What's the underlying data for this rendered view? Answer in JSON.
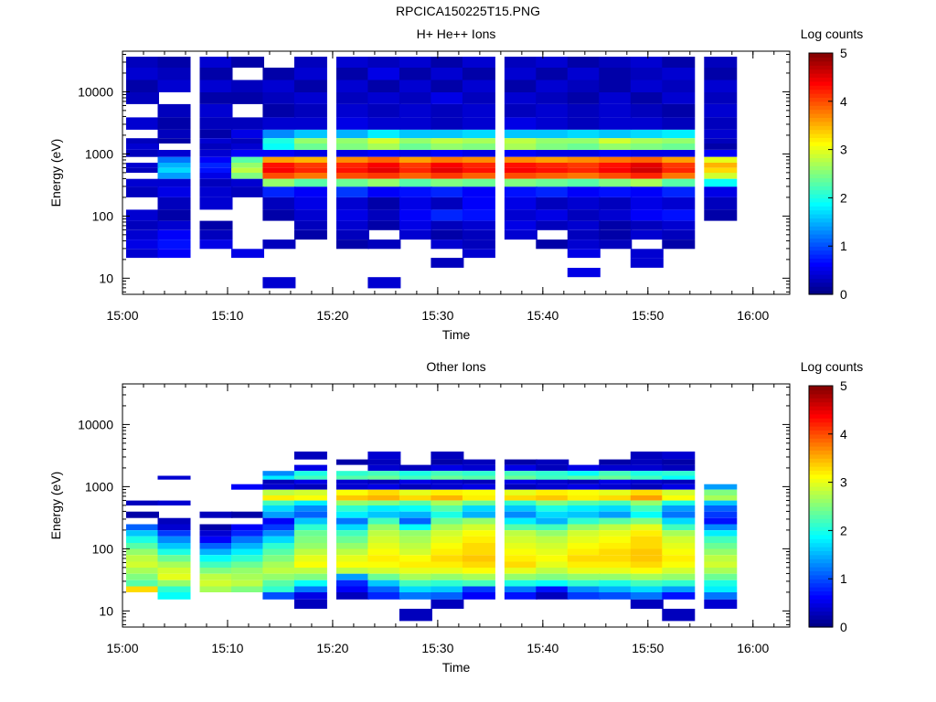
{
  "figure": {
    "title": "RPCICA150225T15.PNG"
  },
  "colorbar": {
    "label": "Log counts",
    "ticks": [
      "0",
      "1",
      "2",
      "3",
      "4",
      "5"
    ]
  },
  "chart_data": [
    {
      "type": "heatmap",
      "title": "H+ He++ Ions",
      "xlabel": "Time",
      "ylabel": "Energy (eV)",
      "x_ticks": [
        "15:00",
        "15:10",
        "15:20",
        "15:30",
        "15:40",
        "15:50",
        "16:00"
      ],
      "y_ticks": [
        "10",
        "100",
        "1000",
        "10000"
      ],
      "x_range": [
        "15:00",
        "16:00"
      ],
      "y_range": [
        5.5,
        45000
      ],
      "y_scale": "log",
      "colorbar_label": "Log counts",
      "colorbar_range": [
        0,
        5
      ],
      "x_bins": [
        "15:02",
        "15:05",
        "15:09",
        "15:12",
        "15:15",
        "15:18",
        "15:22",
        "15:25",
        "15:28",
        "15:31",
        "15:34",
        "15:38",
        "15:41",
        "15:44",
        "15:47",
        "15:50",
        "15:53",
        "15:57"
      ],
      "energy_rows": [
        30000,
        20000,
        12000,
        8000,
        5000,
        3000,
        2000,
        1600,
        1350,
        1000,
        800,
        650,
        550,
        450,
        350,
        250,
        160,
        100,
        70,
        50,
        35,
        25,
        18,
        12,
        9
      ],
      "values": [
        [
          0.3,
          0.2,
          0.4,
          0.2,
          0,
          0.3,
          0.4,
          0.3,
          0.4,
          0.2,
          0.4,
          0.3,
          0.4,
          0.2,
          0.3,
          0.4,
          0.2,
          0.3
        ],
        [
          0.4,
          0.3,
          0.2,
          0,
          0.2,
          0.4,
          0.2,
          0.5,
          0.2,
          0.4,
          0.2,
          0.4,
          0.2,
          0.4,
          0.2,
          0.3,
          0.4,
          0.2
        ],
        [
          0.2,
          0.4,
          0.4,
          0.3,
          0.4,
          0.2,
          0.4,
          0.2,
          0.4,
          0.2,
          0.4,
          0.2,
          0.4,
          0.3,
          0.2,
          0.4,
          0.3,
          0.4
        ],
        [
          0.3,
          0,
          0.2,
          0.2,
          0.3,
          0.4,
          0.3,
          0.4,
          0.3,
          0.5,
          0.3,
          0.4,
          0.3,
          0.2,
          0.4,
          0.2,
          0.4,
          0.3
        ],
        [
          0,
          0.3,
          0.4,
          0,
          0.2,
          0.3,
          0.4,
          0.3,
          0.4,
          0.3,
          0.4,
          0.3,
          0.4,
          0.3,
          0.4,
          0.3,
          0.2,
          0.4
        ],
        [
          0.4,
          0.2,
          0.3,
          0.3,
          0.4,
          0.4,
          0.5,
          0.4,
          0.4,
          0.3,
          0.4,
          0.5,
          0.4,
          0.3,
          0.4,
          0.4,
          0.3,
          0.3
        ],
        [
          0,
          0.3,
          0.2,
          0.5,
          1.3,
          1.6,
          1.5,
          1.8,
          1.6,
          1.6,
          1.7,
          1.6,
          1.6,
          1.7,
          1.6,
          1.7,
          1.8,
          0.4
        ],
        [
          0.3,
          0.2,
          0.4,
          0.3,
          2.0,
          2.6,
          2.6,
          2.9,
          2.6,
          2.8,
          2.7,
          2.8,
          2.6,
          2.6,
          2.9,
          2.7,
          2.6,
          0.3
        ],
        [
          0.4,
          0,
          0.3,
          0.4,
          1.9,
          2.4,
          2.5,
          2.7,
          2.4,
          2.6,
          2.5,
          2.7,
          2.5,
          2.4,
          2.6,
          2.5,
          2.4,
          0.2
        ],
        [
          0.3,
          0.4,
          0.4,
          0.6,
          0.6,
          0.5,
          0.5,
          0.6,
          0.5,
          0.6,
          0.5,
          0.6,
          0.5,
          0.5,
          0.6,
          0.5,
          0.5,
          0.6
        ],
        [
          0,
          1.2,
          0.6,
          2.3,
          3.6,
          3.5,
          3.7,
          3.9,
          3.6,
          3.8,
          3.7,
          3.7,
          3.6,
          3.7,
          3.8,
          3.9,
          3.6,
          3.0
        ],
        [
          0.4,
          1.5,
          0.8,
          2.6,
          4.3,
          4.1,
          4.2,
          4.4,
          4.1,
          4.4,
          4.2,
          4.3,
          4.2,
          4.1,
          4.3,
          4.5,
          4.1,
          3.5
        ],
        [
          0.3,
          1.7,
          0.7,
          2.8,
          4.4,
          4.2,
          4.3,
          4.5,
          4.2,
          4.5,
          4.3,
          4.4,
          4.3,
          4.2,
          4.4,
          4.6,
          4.2,
          3.3
        ],
        [
          0,
          1.4,
          0.5,
          2.5,
          4.0,
          3.8,
          4.0,
          4.1,
          3.9,
          4.1,
          3.9,
          4.0,
          3.9,
          3.8,
          4.0,
          4.2,
          3.8,
          2.9
        ],
        [
          0.4,
          0.4,
          0.3,
          0.4,
          2.6,
          2.3,
          2.4,
          2.6,
          2.3,
          2.5,
          2.4,
          2.5,
          2.4,
          2.3,
          2.5,
          2.7,
          2.3,
          1.9
        ],
        [
          0.3,
          0.5,
          0.4,
          0.3,
          0.8,
          0.6,
          0.9,
          0.6,
          0.7,
          0.8,
          0.6,
          0.7,
          0.8,
          0.6,
          0.7,
          0.6,
          0.8,
          0.5
        ],
        [
          0,
          0.3,
          0.4,
          0,
          0.3,
          0.5,
          0.4,
          0.2,
          0.5,
          0.3,
          0.6,
          0.5,
          0.3,
          0.4,
          0.3,
          0.5,
          0.4,
          0.3
        ],
        [
          0.4,
          0.2,
          0,
          0,
          0.2,
          0.4,
          0.5,
          0.3,
          0.6,
          0.8,
          0.7,
          0.4,
          0.5,
          0.3,
          0.4,
          0.6,
          0.7,
          0.2
        ],
        [
          0.3,
          0.4,
          0.2,
          0,
          0,
          0.3,
          0.4,
          0.2,
          0.5,
          0.3,
          0.4,
          0.5,
          0.3,
          0.4,
          0.2,
          0.3,
          0.4,
          0
        ],
        [
          0.4,
          0.6,
          0.3,
          0,
          0,
          0.2,
          0.3,
          0,
          0.4,
          0.2,
          0.3,
          0.4,
          0,
          0.3,
          0.2,
          0.4,
          0.3,
          0
        ],
        [
          0.5,
          0.7,
          0.5,
          0,
          0.3,
          0,
          0.2,
          0.3,
          0,
          0.4,
          0.3,
          0,
          0.2,
          0.4,
          0.3,
          0,
          0.2,
          0
        ],
        [
          0.4,
          0.6,
          0,
          0.5,
          0,
          0,
          0,
          0,
          0,
          0,
          0.4,
          0,
          0,
          0.5,
          0,
          0.4,
          0,
          0
        ],
        [
          0,
          0,
          0,
          0,
          0,
          0,
          0,
          0,
          0,
          0.3,
          0,
          0,
          0,
          0,
          0,
          0.4,
          0,
          0
        ],
        [
          0,
          0,
          0,
          0,
          0,
          0,
          0,
          0,
          0,
          0,
          0,
          0,
          0,
          0.5,
          0,
          0,
          0,
          0
        ],
        [
          0,
          0,
          0,
          0,
          0.4,
          0,
          0,
          0.4,
          0,
          0,
          0,
          0,
          0,
          0,
          0,
          0,
          0,
          0
        ]
      ]
    },
    {
      "type": "heatmap",
      "title": "Other Ions",
      "xlabel": "Time",
      "ylabel": "Energy (eV)",
      "x_ticks": [
        "15:00",
        "15:10",
        "15:20",
        "15:30",
        "15:40",
        "15:50",
        "16:00"
      ],
      "y_ticks": [
        "10",
        "100",
        "1000",
        "10000"
      ],
      "x_range": [
        "15:00",
        "16:00"
      ],
      "y_range": [
        5.5,
        45000
      ],
      "y_scale": "log",
      "colorbar_label": "Log counts",
      "colorbar_range": [
        0,
        5
      ],
      "x_bins": [
        "15:02",
        "15:05",
        "15:09",
        "15:12",
        "15:15",
        "15:18",
        "15:22",
        "15:25",
        "15:28",
        "15:31",
        "15:34",
        "15:38",
        "15:41",
        "15:44",
        "15:47",
        "15:50",
        "15:53",
        "15:57"
      ],
      "energy_rows": [
        3000,
        2500,
        2000,
        1600,
        1400,
        1200,
        1000,
        800,
        650,
        550,
        450,
        350,
        280,
        220,
        180,
        140,
        110,
        90,
        70,
        55,
        45,
        35,
        28,
        22,
        18,
        13,
        9
      ],
      "values": [
        [
          0,
          0,
          0,
          0,
          0,
          0.3,
          0,
          0.4,
          0,
          0.3,
          0,
          0,
          0,
          0,
          0,
          0.3,
          0.4,
          0
        ],
        [
          0,
          0,
          0,
          0,
          0,
          0,
          0.2,
          0.3,
          0,
          0.2,
          0.3,
          0.2,
          0.3,
          0,
          0.2,
          0.3,
          0.2,
          0
        ],
        [
          0,
          0,
          0,
          0,
          0,
          0.5,
          0,
          0.4,
          0.3,
          0.5,
          0.4,
          0.5,
          0.3,
          0.5,
          0.4,
          0.4,
          0.3,
          0
        ],
        [
          0,
          0,
          0,
          0,
          1.3,
          2.0,
          2.1,
          2.2,
          2.0,
          2.2,
          2.1,
          2.2,
          2.1,
          1.9,
          2.2,
          2.0,
          2.1,
          0
        ],
        [
          0,
          0.4,
          0,
          0,
          1.8,
          2.2,
          2.3,
          2.4,
          2.2,
          2.4,
          2.3,
          2.4,
          2.2,
          2.3,
          2.4,
          2.2,
          1.9,
          0
        ],
        [
          0,
          0,
          0,
          0,
          0.3,
          0.5,
          0.4,
          0.3,
          0.5,
          0.4,
          0.3,
          0.5,
          0.4,
          0.3,
          0.5,
          0.4,
          0.3,
          0
        ],
        [
          0,
          0,
          0,
          0.6,
          0.4,
          0.3,
          0.4,
          0.5,
          0.3,
          0.4,
          0.5,
          0.3,
          0.4,
          0.5,
          0.4,
          0.3,
          0.5,
          1.4
        ],
        [
          0,
          0,
          0,
          0,
          2.8,
          2.9,
          3.1,
          3.3,
          3.0,
          3.2,
          3.1,
          3.0,
          3.2,
          3.1,
          3.0,
          3.3,
          2.9,
          2.5
        ],
        [
          0,
          0,
          0,
          0,
          3.2,
          3.1,
          3.4,
          3.5,
          3.3,
          3.5,
          3.2,
          3.3,
          3.4,
          3.2,
          3.3,
          3.6,
          3.1,
          2.7
        ],
        [
          0.3,
          0.4,
          0,
          0,
          2.2,
          1.8,
          2.6,
          2.5,
          2.3,
          2.7,
          2.4,
          2.1,
          2.5,
          2.3,
          2.2,
          2.6,
          2.0,
          1.6
        ],
        [
          0,
          0,
          0,
          0,
          1.7,
          1.3,
          2.1,
          1.8,
          1.9,
          2.3,
          1.7,
          1.6,
          2.0,
          1.8,
          1.7,
          2.2,
          1.4,
          1.1
        ],
        [
          0.2,
          0,
          0.3,
          0.2,
          1.4,
          1.1,
          1.8,
          1.6,
          1.5,
          2.0,
          1.5,
          1.3,
          1.7,
          1.6,
          1.4,
          1.9,
          1.2,
          0.9
        ],
        [
          0,
          0.3,
          0,
          0,
          0.6,
          1.6,
          1.2,
          2.2,
          1.1,
          2.4,
          2.6,
          1.8,
          1.5,
          2.1,
          2.3,
          2.5,
          1.7,
          0.7
        ],
        [
          1.1,
          0.4,
          0.2,
          0.6,
          0.9,
          2.1,
          1.7,
          2.6,
          1.9,
          2.7,
          2.9,
          2.3,
          2.2,
          2.6,
          2.8,
          3.0,
          2.2,
          1.3
        ],
        [
          1.6,
          0.9,
          0.4,
          0.8,
          1.3,
          2.4,
          2.2,
          2.8,
          2.6,
          2.9,
          3.1,
          2.8,
          2.6,
          2.9,
          3.0,
          3.2,
          2.7,
          1.8
        ],
        [
          2.0,
          1.3,
          0.6,
          1.2,
          1.7,
          2.5,
          2.4,
          2.9,
          2.7,
          3.0,
          3.2,
          2.9,
          2.8,
          3.0,
          3.1,
          3.3,
          2.9,
          2.2
        ],
        [
          2.3,
          1.6,
          1.1,
          1.5,
          2.1,
          2.6,
          2.6,
          3.0,
          2.8,
          3.1,
          3.3,
          3.0,
          2.9,
          3.1,
          3.2,
          3.3,
          3.0,
          2.4
        ],
        [
          2.6,
          2.0,
          1.5,
          1.8,
          2.3,
          2.8,
          2.8,
          3.1,
          2.9,
          3.2,
          3.3,
          3.1,
          3.0,
          3.2,
          3.3,
          3.4,
          3.1,
          2.6
        ],
        [
          2.8,
          2.4,
          1.9,
          2.1,
          2.5,
          3.0,
          3.0,
          3.2,
          3.1,
          3.3,
          3.4,
          3.2,
          3.1,
          3.3,
          3.3,
          3.4,
          3.2,
          2.8
        ],
        [
          2.9,
          2.7,
          2.2,
          2.4,
          2.7,
          3.1,
          3.1,
          3.1,
          3.2,
          3.2,
          3.3,
          3.3,
          3.0,
          3.2,
          3.2,
          3.3,
          3.1,
          2.9
        ],
        [
          2.7,
          2.9,
          2.5,
          2.6,
          2.8,
          2.8,
          2.8,
          2.9,
          3.0,
          3.0,
          3.1,
          3.0,
          2.8,
          3.0,
          3.0,
          3.1,
          2.9,
          2.7
        ],
        [
          2.5,
          3.0,
          2.8,
          2.7,
          2.6,
          2.5,
          1.4,
          2.4,
          2.7,
          2.6,
          2.7,
          2.6,
          2.5,
          2.6,
          2.6,
          2.7,
          2.6,
          2.4
        ],
        [
          2.3,
          2.6,
          2.9,
          2.8,
          2.3,
          1.9,
          0.8,
          1.6,
          2.2,
          2.1,
          2.2,
          2.0,
          1.9,
          2.1,
          2.0,
          2.2,
          2.1,
          2.0
        ],
        [
          3.3,
          2.1,
          2.7,
          2.5,
          2.1,
          1.2,
          0.6,
          1.1,
          1.7,
          1.6,
          0.9,
          1.2,
          0.7,
          1.3,
          1.5,
          1.7,
          1.4,
          1.8
        ],
        [
          0,
          1.9,
          0,
          0,
          1.0,
          0.5,
          0.3,
          0.8,
          1.2,
          1.1,
          0.6,
          0.7,
          0.3,
          0.9,
          1.0,
          1.2,
          0.7,
          1.2
        ],
        [
          0,
          0,
          0,
          0,
          0,
          0.3,
          0,
          0,
          0,
          0.3,
          0,
          0,
          0,
          0,
          0,
          0.3,
          0,
          0.4
        ],
        [
          0,
          0,
          0,
          0,
          0,
          0,
          0,
          0,
          0.3,
          0,
          0,
          0,
          0,
          0,
          0,
          0,
          0.3,
          0
        ]
      ]
    }
  ]
}
